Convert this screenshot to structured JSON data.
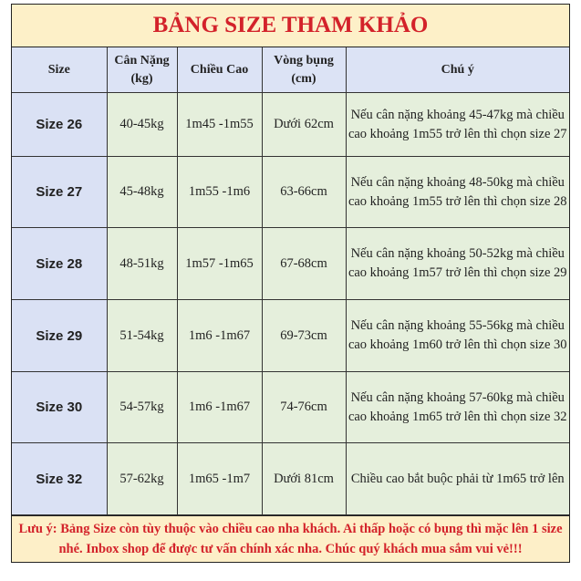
{
  "title": "BẢNG SIZE THAM KHẢO",
  "headers": [
    "Size",
    "Cân Nặng (kg)",
    "Chiều Cao",
    "Vòng bụng (cm)",
    "Chú ý"
  ],
  "rows": [
    {
      "size": "Size 26",
      "weight": "40-45kg",
      "height": "1m45 -1m55",
      "waist": "Dưới 62cm",
      "note": "Nếu cân nặng khoảng 45-47kg mà chiều cao khoảng 1m55 trở lên thì chọn size 27"
    },
    {
      "size": "Size 27",
      "weight": "45-48kg",
      "height": "1m55 -1m6",
      "waist": "63-66cm",
      "note": "Nếu cân nặng khoảng 48-50kg mà chiều cao khoảng 1m55 trở lên thì chọn size 28"
    },
    {
      "size": "Size 28",
      "weight": "48-51kg",
      "height": "1m57 -1m65",
      "waist": "67-68cm",
      "note": "Nếu cân nặng khoảng 50-52kg mà chiều cao khoảng 1m57 trở lên thì chọn size 29"
    },
    {
      "size": "Size 29",
      "weight": "51-54kg",
      "height": "1m6 -1m67",
      "waist": "69-73cm",
      "note": "Nếu cân nặng khoảng 55-56kg mà chiều cao khoảng 1m60 trở lên thì chọn size 30"
    },
    {
      "size": "Size 30",
      "weight": "54-57kg",
      "height": "1m6 -1m67",
      "waist": "74-76cm",
      "note": "Nếu cân nặng khoảng 57-60kg mà chiều cao khoảng 1m65 trở lên thì chọn size 32"
    },
    {
      "size": "Size 32",
      "weight": "57-62kg",
      "height": "1m65 -1m7",
      "waist": "Dưới 81cm",
      "note": "Chiều cao bắt buộc phải từ 1m65 trở lên"
    }
  ],
  "footer_note": "Lưu ý: Bảng Size còn tùy thuộc vào chiều cao nha khách. Ai thấp hoặc có bụng thì mặc lên 1 size nhé. Inbox shop để được tư vấn chính xác nha. Chúc quý khách mua sắm vui vẻ!!!",
  "colors": {
    "title_bg": "#fdf0c8",
    "title_text": "#d3222a",
    "header_bg": "#dce3f5",
    "cell_bg": "#e5efdc"
  }
}
